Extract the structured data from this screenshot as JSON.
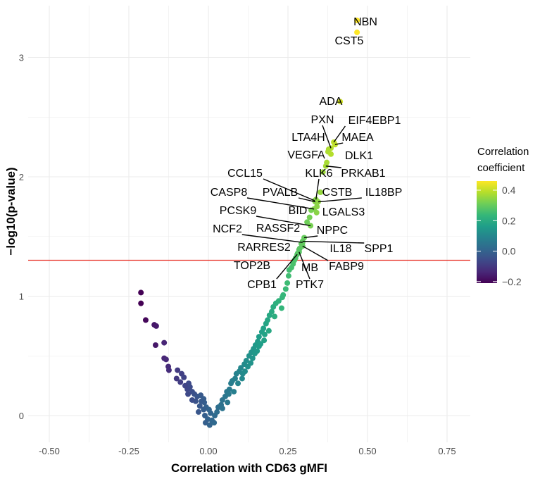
{
  "chart_data": {
    "type": "scatter",
    "title": "",
    "xlabel": "Correlation with CD63 gMFI",
    "ylabel": "−log10(p-value)",
    "xlim": [
      -0.57,
      0.82
    ],
    "ylim": [
      -0.22,
      3.44
    ],
    "grid": true,
    "x_ticks": [
      -0.5,
      -0.25,
      0.0,
      0.25,
      0.5,
      0.75
    ],
    "x_tick_labels": [
      "-0.50",
      "-0.25",
      "0.00",
      "0.25",
      "0.50",
      "0.75"
    ],
    "y_ticks": [
      0,
      1,
      2,
      3
    ],
    "y_tick_labels": [
      "0",
      "1",
      "2",
      "3"
    ],
    "threshold_line": {
      "y": 1.301,
      "color": "#e8332a"
    },
    "color_scale": {
      "title_line1": "Correlation",
      "title_line2": "coefficient",
      "palette": "viridis",
      "range": [
        -0.21,
        0.46
      ],
      "ticks": [
        0.4,
        0.2,
        0.0,
        -0.2
      ],
      "tick_labels": [
        "0.4",
        "0.2",
        "0.0",
        "−0.2"
      ],
      "placement": "right"
    },
    "labeled_points": [
      {
        "label": "NBN",
        "x": 0.467,
        "y": 3.31
      },
      {
        "label": "CST5",
        "x": 0.467,
        "y": 3.21
      },
      {
        "label": "ADA",
        "x": 0.414,
        "y": 2.63
      },
      {
        "label": "EIF4EBP1",
        "x": 0.394,
        "y": 2.29
      },
      {
        "label": "PXN",
        "x": 0.385,
        "y": 2.24
      },
      {
        "label": "LTA4H",
        "x": 0.378,
        "y": 2.23
      },
      {
        "label": "MAEA",
        "x": 0.398,
        "y": 2.27
      },
      {
        "label": "VEGFA",
        "x": 0.376,
        "y": 2.21
      },
      {
        "label": "DLK1",
        "x": 0.385,
        "y": 2.19
      },
      {
        "label": "PRKAB1",
        "x": 0.369,
        "y": 2.09
      },
      {
        "label": "KLK6",
        "x": 0.338,
        "y": 1.81
      },
      {
        "label": "CCL15",
        "x": 0.334,
        "y": 1.8
      },
      {
        "label": "CASP8",
        "x": 0.332,
        "y": 1.73
      },
      {
        "label": "PVALB",
        "x": 0.336,
        "y": 1.79
      },
      {
        "label": "CSTB",
        "x": 0.352,
        "y": 1.87
      },
      {
        "label": "IL18BP",
        "x": 0.345,
        "y": 1.79
      },
      {
        "label": "LGALS3",
        "x": 0.341,
        "y": 1.75
      },
      {
        "label": "BID",
        "x": 0.323,
        "y": 1.72
      },
      {
        "label": "PCSK9",
        "x": 0.321,
        "y": 1.59
      },
      {
        "label": "NCF2",
        "x": 0.296,
        "y": 1.45
      },
      {
        "label": "RASSF2",
        "x": 0.287,
        "y": 1.4
      },
      {
        "label": "NPPC",
        "x": 0.301,
        "y": 1.49
      },
      {
        "label": "RARRES2",
        "x": 0.285,
        "y": 1.39
      },
      {
        "label": "IL18",
        "x": 0.292,
        "y": 1.44
      },
      {
        "label": "SPP1",
        "x": 0.296,
        "y": 1.46
      },
      {
        "label": "FABP9",
        "x": 0.296,
        "y": 1.42
      },
      {
        "label": "TOP2B",
        "x": 0.27,
        "y": 1.3
      },
      {
        "label": "MB",
        "x": 0.281,
        "y": 1.36
      },
      {
        "label": "CPB1",
        "x": 0.279,
        "y": 1.35
      },
      {
        "label": "PTK7",
        "x": 0.285,
        "y": 1.37
      }
    ],
    "points": [
      [
        -0.212,
        1.03
      ],
      [
        -0.212,
        0.94
      ],
      [
        -0.197,
        0.8
      ],
      [
        -0.17,
        0.76
      ],
      [
        -0.164,
        0.75
      ],
      [
        -0.166,
        0.59
      ],
      [
        -0.139,
        0.61
      ],
      [
        -0.139,
        0.48
      ],
      [
        -0.133,
        0.47
      ],
      [
        -0.126,
        0.41
      ],
      [
        -0.124,
        0.38
      ],
      [
        -0.097,
        0.38
      ],
      [
        -0.084,
        0.35
      ],
      [
        -0.1,
        0.31
      ],
      [
        -0.088,
        0.28
      ],
      [
        -0.062,
        0.27
      ],
      [
        -0.058,
        0.24
      ],
      [
        -0.066,
        0.22
      ],
      [
        -0.051,
        0.2
      ],
      [
        -0.044,
        0.18
      ],
      [
        -0.064,
        0.18
      ],
      [
        -0.035,
        0.16
      ],
      [
        -0.024,
        0.17
      ],
      [
        -0.015,
        0.14
      ],
      [
        -0.013,
        0.11
      ],
      [
        -0.027,
        0.08
      ],
      [
        -0.007,
        0.07
      ],
      [
        0.002,
        0.05
      ],
      [
        0.007,
        0.02
      ],
      [
        -0.011,
        0.0
      ],
      [
        -0.002,
        -0.03
      ],
      [
        -0.009,
        -0.06
      ],
      [
        0.004,
        -0.08
      ],
      [
        0.018,
        -0.06
      ],
      [
        0.011,
        -0.04
      ],
      [
        -0.022,
        0.12
      ],
      [
        -0.04,
        0.12
      ],
      [
        -0.073,
        0.25
      ],
      [
        -0.077,
        0.32
      ],
      [
        -0.051,
        0.13
      ],
      [
        -0.031,
        0.03
      ],
      [
        -0.015,
        0.05
      ],
      [
        0.02,
        0.0
      ],
      [
        0.027,
        0.03
      ],
      [
        0.031,
        0.07
      ],
      [
        0.04,
        0.09
      ],
      [
        0.044,
        0.13
      ],
      [
        0.053,
        0.16
      ],
      [
        0.058,
        0.2
      ],
      [
        0.066,
        0.22
      ],
      [
        0.071,
        0.27
      ],
      [
        0.064,
        0.18
      ],
      [
        0.075,
        0.29
      ],
      [
        0.084,
        0.31
      ],
      [
        0.088,
        0.35
      ],
      [
        0.097,
        0.37
      ],
      [
        0.102,
        0.4
      ],
      [
        0.108,
        0.35
      ],
      [
        0.113,
        0.43
      ],
      [
        0.119,
        0.46
      ],
      [
        0.124,
        0.41
      ],
      [
        0.128,
        0.5
      ],
      [
        0.135,
        0.53
      ],
      [
        0.139,
        0.48
      ],
      [
        0.142,
        0.56
      ],
      [
        0.148,
        0.59
      ],
      [
        0.153,
        0.54
      ],
      [
        0.155,
        0.62
      ],
      [
        0.159,
        0.66
      ],
      [
        0.164,
        0.6
      ],
      [
        0.168,
        0.7
      ],
      [
        0.173,
        0.73
      ],
      [
        0.177,
        0.68
      ],
      [
        0.181,
        0.77
      ],
      [
        0.186,
        0.8
      ],
      [
        0.192,
        0.84
      ],
      [
        0.199,
        0.87
      ],
      [
        0.204,
        0.91
      ],
      [
        0.212,
        0.94
      ],
      [
        0.221,
        0.96
      ],
      [
        0.232,
        0.99
      ],
      [
        0.235,
        1.01
      ],
      [
        0.23,
        0.9
      ],
      [
        0.243,
        1.06
      ],
      [
        0.248,
        1.11
      ],
      [
        0.252,
        1.17
      ],
      [
        0.254,
        1.22
      ],
      [
        0.261,
        1.24
      ],
      [
        0.044,
        0.06
      ],
      [
        0.06,
        0.11
      ],
      [
        0.08,
        0.2
      ],
      [
        0.093,
        0.27
      ],
      [
        0.106,
        0.31
      ],
      [
        0.115,
        0.37
      ],
      [
        0.133,
        0.44
      ],
      [
        0.146,
        0.52
      ],
      [
        0.159,
        0.58
      ],
      [
        0.175,
        0.63
      ],
      [
        0.19,
        0.71
      ],
      [
        0.208,
        0.83
      ],
      [
        0.266,
        1.27
      ],
      [
        0.274,
        1.32
      ],
      [
        0.31,
        1.62
      ],
      [
        0.318,
        1.66
      ],
      [
        0.34,
        1.7
      ],
      [
        0.36,
        2.04
      ],
      [
        0.372,
        2.12
      ]
    ]
  }
}
